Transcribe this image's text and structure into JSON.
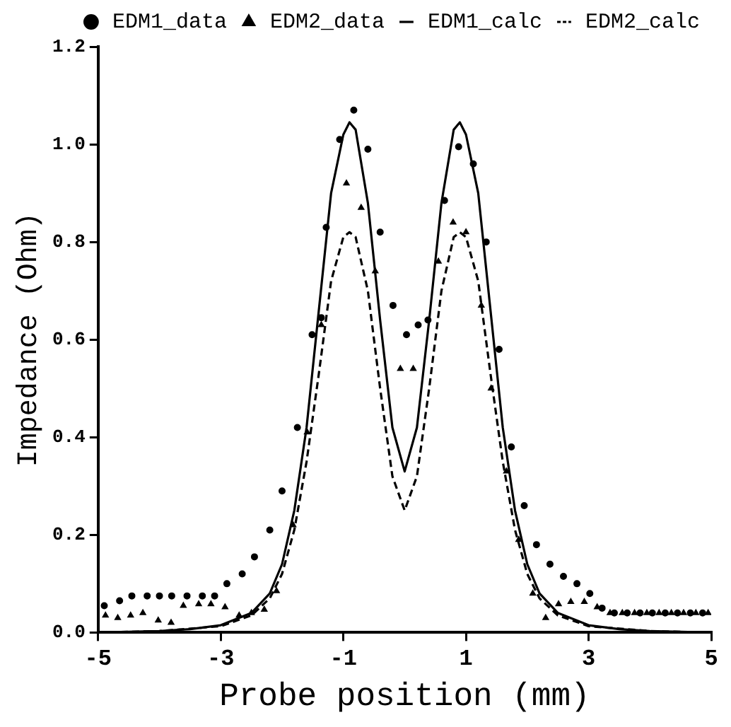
{
  "chart_data": {
    "type": "line",
    "xlabel": "Probe position (mm)",
    "ylabel": "Impedance (Ohm)",
    "xlim": [
      -5,
      5
    ],
    "xticks": [
      -5,
      -3,
      -1,
      1,
      3,
      5
    ],
    "ylim": [
      0,
      1.2
    ],
    "yticks": [
      {
        "value": 0,
        "label": "0.0"
      },
      {
        "value": 0.2,
        "label": "0.2"
      },
      {
        "value": 0.4,
        "label": "0.4"
      },
      {
        "value": 0.6,
        "label": "0.6"
      },
      {
        "value": 0.8,
        "label": "0.8"
      },
      {
        "value": 1.0,
        "label": "1.0"
      },
      {
        "value": 1.2,
        "label": "1.2"
      }
    ],
    "grid": false,
    "legend": "top right",
    "series": [
      {
        "name": "EDM1_data",
        "type": "scatter",
        "marker": "circle",
        "color": "#000000",
        "x": [
          -4.9,
          -4.65,
          -4.45,
          -4.2,
          -4.0,
          -3.8,
          -3.55,
          -3.3,
          -3.1,
          -2.9,
          -2.65,
          -2.45,
          -2.2,
          -2.0,
          -1.75,
          -1.51,
          -1.36,
          -1.28,
          -1.06,
          -0.83,
          -0.6,
          -0.4,
          -0.19,
          0.03,
          0.22,
          0.38,
          0.65,
          0.88,
          1.12,
          1.33,
          1.54,
          1.74,
          1.95,
          2.15,
          2.37,
          2.59,
          2.81,
          3.02,
          3.22,
          3.42,
          3.63,
          3.84,
          4.04,
          4.25,
          4.45,
          4.66,
          4.86
        ],
        "values": [
          0.055,
          0.065,
          0.075,
          0.075,
          0.075,
          0.075,
          0.075,
          0.075,
          0.075,
          0.1,
          0.12,
          0.155,
          0.21,
          0.29,
          0.42,
          0.61,
          0.645,
          0.83,
          1.01,
          1.07,
          0.99,
          0.82,
          0.67,
          0.61,
          0.63,
          0.64,
          0.885,
          0.995,
          0.96,
          0.8,
          0.58,
          0.38,
          0.26,
          0.18,
          0.14,
          0.115,
          0.1,
          0.08,
          0.05,
          0.04,
          0.04,
          0.04,
          0.04,
          0.04,
          0.04,
          0.04,
          0.04
        ]
      },
      {
        "name": "EDM2_data",
        "type": "scatter",
        "marker": "triangle",
        "color": "#000000",
        "x": [
          -4.88,
          -4.68,
          -4.47,
          -4.27,
          -4.02,
          -3.81,
          -3.61,
          -3.36,
          -3.16,
          -2.93,
          -2.7,
          -2.5,
          -2.29,
          -2.09,
          -1.82,
          -1.59,
          -1.36,
          -0.95,
          -0.71,
          -0.48,
          -0.07,
          0.14,
          0.55,
          0.79,
          1.0,
          1.25,
          1.41,
          1.66,
          1.86,
          2.09,
          2.3,
          2.51,
          2.71,
          2.93,
          3.14,
          3.35,
          3.55,
          3.75,
          3.95,
          4.15,
          4.35,
          4.55,
          4.75,
          4.95
        ],
        "values": [
          0.035,
          0.03,
          0.035,
          0.04,
          0.025,
          0.02,
          0.055,
          0.058,
          0.058,
          0.052,
          0.035,
          0.04,
          0.047,
          0.085,
          0.22,
          0.41,
          0.63,
          0.92,
          0.87,
          0.74,
          0.54,
          0.54,
          0.76,
          0.84,
          0.82,
          0.67,
          0.5,
          0.33,
          0.19,
          0.08,
          0.03,
          0.058,
          0.063,
          0.063,
          0.052,
          0.04,
          0.04,
          0.04,
          0.04,
          0.04,
          0.04,
          0.04,
          0.04,
          0.04
        ]
      },
      {
        "name": "EDM1_calc",
        "type": "line",
        "marker": "none",
        "line_style": "solid",
        "color": "#000000",
        "x": [
          -5,
          -4,
          -3.5,
          -3,
          -2.5,
          -2.2,
          -2,
          -1.8,
          -1.6,
          -1.4,
          -1.2,
          -1.0,
          -0.9,
          -0.8,
          -0.6,
          -0.4,
          -0.2,
          0,
          0.2,
          0.4,
          0.6,
          0.8,
          0.9,
          1.0,
          1.2,
          1.4,
          1.6,
          1.8,
          2,
          2.2,
          2.5,
          3,
          3.5,
          4,
          5
        ],
        "values": [
          0.0,
          0.003,
          0.007,
          0.015,
          0.04,
          0.08,
          0.14,
          0.25,
          0.42,
          0.66,
          0.9,
          1.02,
          1.045,
          1.03,
          0.88,
          0.64,
          0.42,
          0.33,
          0.42,
          0.64,
          0.88,
          1.03,
          1.045,
          1.02,
          0.9,
          0.66,
          0.42,
          0.25,
          0.14,
          0.08,
          0.04,
          0.015,
          0.007,
          0.003,
          0.0
        ]
      },
      {
        "name": "EDM2_calc",
        "type": "line",
        "marker": "none",
        "line_style": "dashed",
        "color": "#000000",
        "x": [
          -5,
          -4,
          -3,
          -2.5,
          -2.2,
          -2,
          -1.8,
          -1.6,
          -1.4,
          -1.2,
          -1.0,
          -0.9,
          -0.8,
          -0.6,
          -0.4,
          -0.2,
          0,
          0.2,
          0.4,
          0.6,
          0.8,
          0.9,
          1.0,
          1.2,
          1.4,
          1.6,
          1.8,
          2,
          2.2,
          2.5,
          3,
          4,
          5
        ],
        "values": [
          0.0,
          0.003,
          0.013,
          0.035,
          0.07,
          0.12,
          0.21,
          0.35,
          0.53,
          0.72,
          0.81,
          0.82,
          0.81,
          0.7,
          0.5,
          0.32,
          0.25,
          0.32,
          0.5,
          0.7,
          0.81,
          0.82,
          0.81,
          0.72,
          0.53,
          0.35,
          0.21,
          0.12,
          0.07,
          0.035,
          0.013,
          0.003,
          0.0
        ]
      }
    ]
  }
}
